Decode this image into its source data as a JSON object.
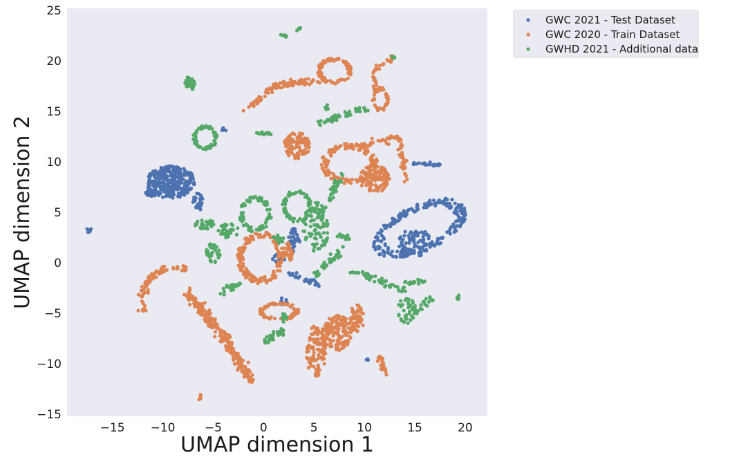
{
  "chart_data": {
    "type": "scatter",
    "title": "",
    "xlabel": "UMAP dimension 1",
    "ylabel": "UMAP dimension 2",
    "xlim": [
      -19.5,
      22.2
    ],
    "ylim": [
      -15.2,
      25.2
    ],
    "xticks": [
      -15,
      -10,
      -5,
      0,
      5,
      10,
      15,
      20
    ],
    "yticks": [
      -15,
      -10,
      -5,
      0,
      5,
      10,
      15,
      20,
      25
    ],
    "grid": false,
    "legend_position": "outside-top-right",
    "plot_background": "#eaeaf2",
    "series": [
      {
        "name": "GWC 2021 - Test Dataset",
        "color": "#4c72b0",
        "clusters": [
          {
            "shape": "blob",
            "cx": -9.2,
            "cy": 8.0,
            "rx": 2.4,
            "ry": 1.6,
            "n": 300
          },
          {
            "shape": "blob",
            "cx": -11.0,
            "cy": 6.9,
            "rx": 0.8,
            "ry": 0.3,
            "n": 30
          },
          {
            "shape": "blob",
            "cx": -6.5,
            "cy": 6.0,
            "rx": 0.5,
            "ry": 0.9,
            "n": 25
          },
          {
            "shape": "blob",
            "cx": -17.3,
            "cy": 3.3,
            "rx": 0.3,
            "ry": 0.3,
            "n": 8
          },
          {
            "shape": "ring",
            "cx": 15.5,
            "cy": 3.4,
            "rx": 5.0,
            "ry": 2.3,
            "rot": 25,
            "n": 220
          },
          {
            "shape": "blob",
            "cx": 15.0,
            "cy": 2.0,
            "rx": 1.6,
            "ry": 1.4,
            "n": 80
          },
          {
            "shape": "line",
            "x0": 14.8,
            "y0": 9.9,
            "x1": 17.5,
            "y1": 9.7,
            "w": 0.15,
            "n": 25
          },
          {
            "shape": "blob",
            "cx": 3.0,
            "cy": 2.2,
            "rx": 0.6,
            "ry": 1.2,
            "n": 40
          },
          {
            "shape": "blob",
            "cx": 1.5,
            "cy": 0.3,
            "rx": 0.6,
            "ry": 0.6,
            "n": 25
          },
          {
            "shape": "line",
            "x0": 2.5,
            "y0": -1.0,
            "x1": 5.5,
            "y1": -2.2,
            "w": 0.3,
            "n": 30
          },
          {
            "shape": "blob",
            "cx": 2.0,
            "cy": -3.8,
            "rx": 0.4,
            "ry": 0.4,
            "n": 8
          },
          {
            "shape": "blob",
            "cx": 10.3,
            "cy": -1.2,
            "rx": 0.2,
            "ry": 0.3,
            "n": 5
          },
          {
            "shape": "blob",
            "cx": 10.3,
            "cy": -9.5,
            "rx": 0.15,
            "ry": 0.15,
            "n": 3
          },
          {
            "shape": "blob",
            "cx": -4.0,
            "cy": 13.2,
            "rx": 0.3,
            "ry": 0.2,
            "n": 5
          }
        ]
      },
      {
        "name": "GWC 2020 - Train Dataset",
        "color": "#dd8452",
        "clusters": [
          {
            "shape": "arc",
            "cx": -8.8,
            "cy": -3.8,
            "rx": 3.3,
            "ry": 3.3,
            "a0": 70,
            "a1": 200,
            "w": 0.35,
            "n": 70
          },
          {
            "shape": "line",
            "x0": -7.5,
            "y0": -3.0,
            "x1": -3.5,
            "y1": -8.0,
            "w": 0.5,
            "n": 150
          },
          {
            "shape": "line",
            "x0": -3.5,
            "y0": -8.0,
            "x1": -1.2,
            "y1": -11.8,
            "w": 0.45,
            "n": 100
          },
          {
            "shape": "blob",
            "cx": -6.3,
            "cy": -13.3,
            "rx": 0.2,
            "ry": 0.3,
            "n": 6
          },
          {
            "shape": "ring",
            "cx": 7.0,
            "cy": 19.0,
            "rx": 1.7,
            "ry": 1.3,
            "rot": 0,
            "n": 90
          },
          {
            "shape": "line",
            "x0": 5.5,
            "y0": 18.0,
            "x1": 1.0,
            "y1": 17.5,
            "w": 0.4,
            "n": 60
          },
          {
            "shape": "line",
            "x0": 1.0,
            "y0": 17.5,
            "x1": -1.8,
            "y1": 15.0,
            "w": 0.3,
            "n": 40
          },
          {
            "shape": "line",
            "x0": 13.0,
            "y0": 20.4,
            "x1": 10.8,
            "y1": 19.0,
            "w": 0.25,
            "n": 20
          },
          {
            "shape": "line",
            "x0": 10.8,
            "y0": 19.0,
            "x1": 11.2,
            "y1": 17.0,
            "w": 0.25,
            "n": 15
          },
          {
            "shape": "ring",
            "cx": 11.6,
            "cy": 16.2,
            "rx": 0.8,
            "ry": 1.2,
            "rot": 0,
            "n": 40
          },
          {
            "shape": "blob",
            "cx": 3.3,
            "cy": 11.6,
            "rx": 1.3,
            "ry": 1.3,
            "n": 100
          },
          {
            "shape": "ring",
            "cx": 8.5,
            "cy": 9.8,
            "rx": 2.8,
            "ry": 2.0,
            "rot": 0,
            "n": 140
          },
          {
            "shape": "blob",
            "cx": 11.0,
            "cy": 8.3,
            "rx": 1.5,
            "ry": 1.4,
            "n": 110
          },
          {
            "shape": "line",
            "x0": 8.0,
            "y0": 11.3,
            "x1": 13.5,
            "y1": 12.4,
            "w": 0.3,
            "n": 60
          },
          {
            "shape": "line",
            "x0": 13.5,
            "y0": 12.4,
            "x1": 14.2,
            "y1": 8.0,
            "w": 0.3,
            "n": 40
          },
          {
            "shape": "ring",
            "cx": -0.3,
            "cy": 0.5,
            "rx": 2.3,
            "ry": 2.6,
            "rot": 0,
            "n": 160
          },
          {
            "shape": "blob",
            "cx": 2.5,
            "cy": 1.0,
            "rx": 0.5,
            "ry": 1.0,
            "n": 25
          },
          {
            "shape": "ring",
            "cx": 1.5,
            "cy": -4.8,
            "rx": 2.0,
            "ry": 0.9,
            "rot": 0,
            "n": 80
          },
          {
            "shape": "blob",
            "cx": 5.2,
            "cy": -8.8,
            "rx": 1.0,
            "ry": 2.6,
            "n": 110
          },
          {
            "shape": "blob",
            "cx": 7.3,
            "cy": -7.0,
            "rx": 1.5,
            "ry": 1.8,
            "n": 140
          },
          {
            "shape": "blob",
            "cx": 9.3,
            "cy": -5.5,
            "rx": 0.8,
            "ry": 1.3,
            "n": 60
          },
          {
            "shape": "line",
            "x0": 11.5,
            "y0": -9.3,
            "x1": 12.1,
            "y1": -11.0,
            "w": 0.25,
            "n": 20
          }
        ]
      },
      {
        "name": "GWHD 2021 - Additional data",
        "color": "#55a868",
        "clusters": [
          {
            "shape": "line",
            "x0": 1.8,
            "y0": 22.6,
            "x1": 2.3,
            "y1": 22.4,
            "w": 0.1,
            "n": 10
          },
          {
            "shape": "line",
            "x0": 3.2,
            "y0": 22.9,
            "x1": 3.6,
            "y1": 23.3,
            "w": 0.1,
            "n": 8
          },
          {
            "shape": "blob",
            "cx": -7.3,
            "cy": 17.8,
            "rx": 0.5,
            "ry": 0.7,
            "n": 35
          },
          {
            "shape": "ring",
            "cx": -5.8,
            "cy": 12.4,
            "rx": 1.2,
            "ry": 1.2,
            "rot": 0,
            "n": 70
          },
          {
            "shape": "line",
            "x0": -0.7,
            "y0": 12.9,
            "x1": 0.8,
            "y1": 12.7,
            "w": 0.15,
            "n": 15
          },
          {
            "shape": "line",
            "x0": 5.5,
            "y0": 13.8,
            "x1": 10.2,
            "y1": 15.4,
            "w": 0.35,
            "n": 45
          },
          {
            "shape": "blob",
            "cx": 6.3,
            "cy": 15.4,
            "rx": 0.2,
            "ry": 0.3,
            "n": 5
          },
          {
            "shape": "ring",
            "cx": -0.8,
            "cy": 4.8,
            "rx": 1.6,
            "ry": 1.8,
            "rot": 0,
            "n": 80
          },
          {
            "shape": "ring",
            "cx": 3.3,
            "cy": 5.6,
            "rx": 1.5,
            "ry": 1.6,
            "rot": 0,
            "n": 80
          },
          {
            "shape": "blob",
            "cx": 5.2,
            "cy": 3.5,
            "rx": 1.3,
            "ry": 2.5,
            "n": 90
          },
          {
            "shape": "line",
            "x0": 5.5,
            "y0": 4.5,
            "x1": 7.8,
            "y1": 8.8,
            "w": 0.35,
            "n": 40
          },
          {
            "shape": "blob",
            "cx": -5.8,
            "cy": 3.8,
            "rx": 1.0,
            "ry": 0.5,
            "n": 30
          },
          {
            "shape": "blob",
            "cx": -3.5,
            "cy": 3.2,
            "rx": 1.0,
            "ry": 0.8,
            "n": 40
          },
          {
            "shape": "blob",
            "cx": -5.0,
            "cy": 1.0,
            "rx": 0.7,
            "ry": 1.0,
            "n": 35
          },
          {
            "shape": "line",
            "x0": -4.5,
            "y0": -2.9,
            "x1": -2.2,
            "y1": -2.0,
            "w": 0.35,
            "n": 25
          },
          {
            "shape": "line",
            "x0": 5.2,
            "y0": -1.2,
            "x1": 7.8,
            "y1": 1.3,
            "w": 0.35,
            "n": 35
          },
          {
            "shape": "blob",
            "cx": 8.0,
            "cy": 2.6,
            "rx": 0.7,
            "ry": 0.4,
            "n": 15
          },
          {
            "shape": "line",
            "x0": 8.8,
            "y0": -0.8,
            "x1": 13.8,
            "y1": -2.7,
            "w": 0.3,
            "n": 50
          },
          {
            "shape": "line",
            "x0": 14.0,
            "y0": -2.0,
            "x1": 16.2,
            "y1": -1.8,
            "w": 0.2,
            "n": 20
          },
          {
            "shape": "blob",
            "cx": 14.2,
            "cy": -4.7,
            "rx": 0.9,
            "ry": 1.3,
            "n": 40
          },
          {
            "shape": "line",
            "x0": 15.0,
            "y0": -5.0,
            "x1": 16.8,
            "y1": -3.5,
            "w": 0.3,
            "n": 20
          },
          {
            "shape": "blob",
            "cx": 19.3,
            "cy": -3.4,
            "rx": 0.15,
            "ry": 0.25,
            "n": 5
          },
          {
            "shape": "line",
            "x0": 0.0,
            "y0": -7.9,
            "x1": 2.2,
            "y1": -6.5,
            "w": 0.35,
            "n": 30
          },
          {
            "shape": "blob",
            "cx": 2.0,
            "cy": -5.5,
            "rx": 0.3,
            "ry": 0.5,
            "n": 10
          },
          {
            "shape": "blob",
            "cx": 12.9,
            "cy": 20.4,
            "rx": 0.2,
            "ry": 0.15,
            "n": 4
          },
          {
            "shape": "blob",
            "cx": 1.5,
            "cy": 2.4,
            "rx": 0.6,
            "ry": 0.5,
            "n": 15
          }
        ]
      }
    ]
  }
}
